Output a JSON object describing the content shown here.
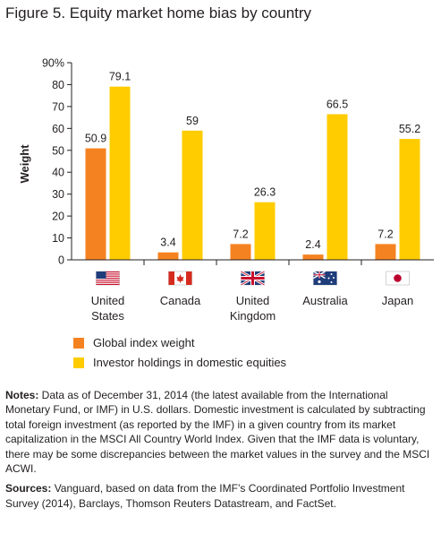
{
  "figure_title": "Figure 5. Equity market home bias by country",
  "chart_data": {
    "type": "bar",
    "title": "Figure 5. Equity market home bias by country",
    "ylabel": "Weight",
    "ylim": [
      0,
      90
    ],
    "yticks": [
      "0",
      "10",
      "20",
      "30",
      "40",
      "50",
      "60",
      "70",
      "80",
      "90%"
    ],
    "categories": [
      "United States",
      "Canada",
      "United Kingdom",
      "Australia",
      "Japan"
    ],
    "category_lines": [
      [
        "United",
        "States"
      ],
      [
        "Canada"
      ],
      [
        "United",
        "Kingdom"
      ],
      [
        "Australia"
      ],
      [
        "Japan"
      ]
    ],
    "series": [
      {
        "name": "Global index weight",
        "color": "#f58220",
        "values": [
          50.9,
          3.4,
          7.2,
          2.4,
          7.2
        ],
        "labels": [
          "50.9",
          "3.4",
          "7.2",
          "2.4",
          "7.2"
        ]
      },
      {
        "name": "Investor holdings in domestic equities",
        "color": "#ffcc00",
        "values": [
          79.1,
          59,
          26.3,
          66.5,
          55.2
        ],
        "labels": [
          "79.1",
          "59",
          "26.3",
          "66.5",
          "55.2"
        ]
      }
    ],
    "flag_icons": [
      "us-flag-icon",
      "canada-flag-icon",
      "uk-flag-icon",
      "australia-flag-icon",
      "japan-flag-icon"
    ],
    "grid": false,
    "legend_position": "bottom-left"
  },
  "legend": {
    "items": [
      {
        "label": "Global index weight",
        "color": "#f58220"
      },
      {
        "label": "Investor holdings in domestic equities",
        "color": "#ffcc00"
      }
    ]
  },
  "notes": {
    "lead": "Notes:",
    "text": " Data as of December 31, 2014 (the latest available from the International Monetary Fund, or IMF) in U.S. dollars. Domestic investment is calculated by subtracting total foreign investment (as reported by the IMF) in a given country from its market capitalization in the MSCI All Country World Index. Given that the IMF data is voluntary, there may be some discrepancies between the market values in the survey and the MSCI ACWI."
  },
  "sources": {
    "lead": "Sources:",
    "text": " Vanguard, based on data from the IMF’s Coordinated Portfolio Investment Survey (2014), Barclays, Thomson Reuters Datastream, and FactSet."
  }
}
